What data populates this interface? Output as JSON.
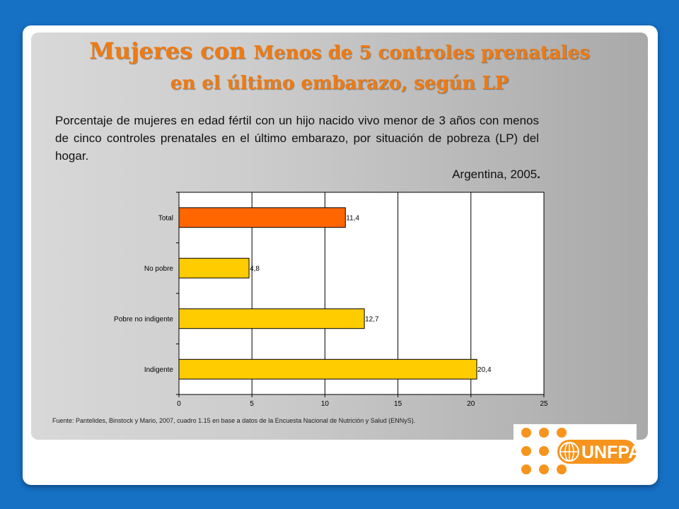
{
  "slide": {
    "title_line1_big": "Mujeres con ",
    "title_line1_small": "Menos de 5 controles prenatales",
    "title_line2": "en el último embarazo, según LP",
    "description": "Porcentaje de mujeres en edad fértil con un hijo nacido vivo menor de 3 años con menos de cinco controles prenatales en el último embarazo, por situación de pobreza (LP) del hogar.",
    "place": "Argentina, 2005",
    "place_dot": ".",
    "source": "Fuente: Pantelides, Binstock y Mario, 2007, cuadro 1.15 en base a datos de la Encuesta Nacional de Nutrición y Salud (ENNyS).",
    "logo_text": "UNFPA"
  },
  "colors": {
    "accent_orange": "#f07a10",
    "bar_total": "#ff6600",
    "bar_other": "#ffcc00",
    "background": "#1670c4",
    "logo_dots": "#f7941d"
  },
  "chart_data": {
    "type": "bar",
    "orientation": "horizontal",
    "categories": [
      "Total",
      "No pobre",
      "Pobre no indigente",
      "Indigente"
    ],
    "values": [
      11.4,
      4.8,
      12.7,
      20.4
    ],
    "value_labels": [
      "11,4",
      "4,8",
      "12,7",
      "20,4"
    ],
    "xlim": [
      0,
      25
    ],
    "xticks": [
      0,
      5,
      10,
      15,
      20,
      25
    ],
    "grid": "vertical",
    "legend": "none"
  }
}
